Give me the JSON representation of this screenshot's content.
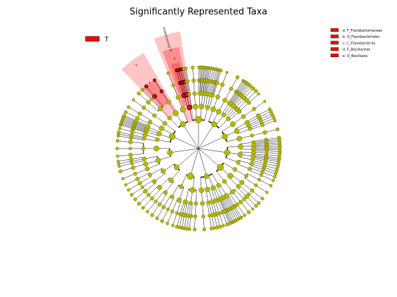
{
  "title": "Significantly Represented Taxa",
  "class_legend": {
    "label": "T",
    "color": "#ff0000"
  },
  "abbreviation_legend": [
    {
      "key": "a",
      "text": "a: F_Flavobacteriaceae"
    },
    {
      "key": "b",
      "text": "b: O_Flavobacteriales"
    },
    {
      "key": "c",
      "text": "c: C_Flavobacteriia"
    },
    {
      "key": "d",
      "text": "d: F_Bacillaceae"
    },
    {
      "key": "e",
      "text": "e: O_Bacillales"
    }
  ],
  "clade_labels": {
    "bacteroidetes": "p_Bacteroidetes",
    "c": "c",
    "b": "b",
    "a": "a",
    "e": "e",
    "d": "d"
  },
  "colors": {
    "node_default": "#b5b800",
    "node_edge": "#555500",
    "node_highlight": "#ff0000",
    "node_highlight_edge": "#000000",
    "shade_light": "#ffb0b0",
    "shade_dark": "#ff6060",
    "edge": "#000000",
    "legend_box_edge": "#000000"
  }
}
